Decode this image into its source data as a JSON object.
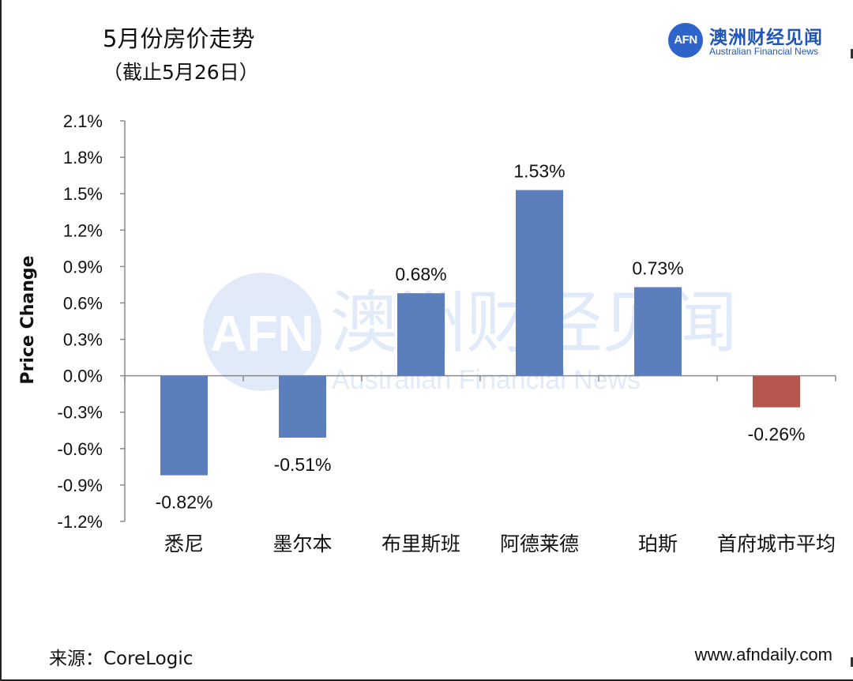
{
  "header": {
    "title": "5月份房价走势",
    "subtitle": "（截止5月26日）"
  },
  "logo": {
    "mark": "AFN",
    "name_cn": "澳洲财经见闻",
    "name_en": "Australian Financial News"
  },
  "watermark": {
    "mark": "AFN",
    "name_cn": "澳洲财经见闻",
    "name_en": "Australian Financial News"
  },
  "footer": {
    "source": "来源：CoreLogic",
    "website": "www.afndaily.com"
  },
  "colors": {
    "positive_bar": "#5b7fbd",
    "negative_average_bar": "#b5574f",
    "axis": "#8a8a8a",
    "logo": "#2e63c9"
  },
  "chart_data": {
    "type": "bar",
    "ylabel": "Price Change",
    "categories": [
      "悉尼",
      "墨尔本",
      "布里斯班",
      "阿德莱德",
      "珀斯",
      "首府城市平均"
    ],
    "values": [
      -0.82,
      -0.51,
      0.68,
      1.53,
      0.73,
      -0.26
    ],
    "value_labels": [
      "-0.82%",
      "-0.51%",
      "0.68%",
      "1.53%",
      "0.73%",
      "-0.26%"
    ],
    "bar_colors": [
      "#5b7fbd",
      "#5b7fbd",
      "#5b7fbd",
      "#5b7fbd",
      "#5b7fbd",
      "#b5574f"
    ],
    "y_ticks": [
      2.1,
      1.8,
      1.5,
      1.2,
      0.9,
      0.6,
      0.3,
      0.0,
      -0.3,
      -0.6,
      -0.9,
      -1.2
    ],
    "y_tick_labels": [
      "2.1%",
      "1.8%",
      "1.5%",
      "1.2%",
      "0.9%",
      "0.6%",
      "0.3%",
      "0.0%",
      "-0.3%",
      "-0.6%",
      "-0.9%",
      "-1.2%"
    ],
    "ylim": [
      -1.2,
      2.1
    ],
    "grid": false,
    "legend": "none"
  }
}
